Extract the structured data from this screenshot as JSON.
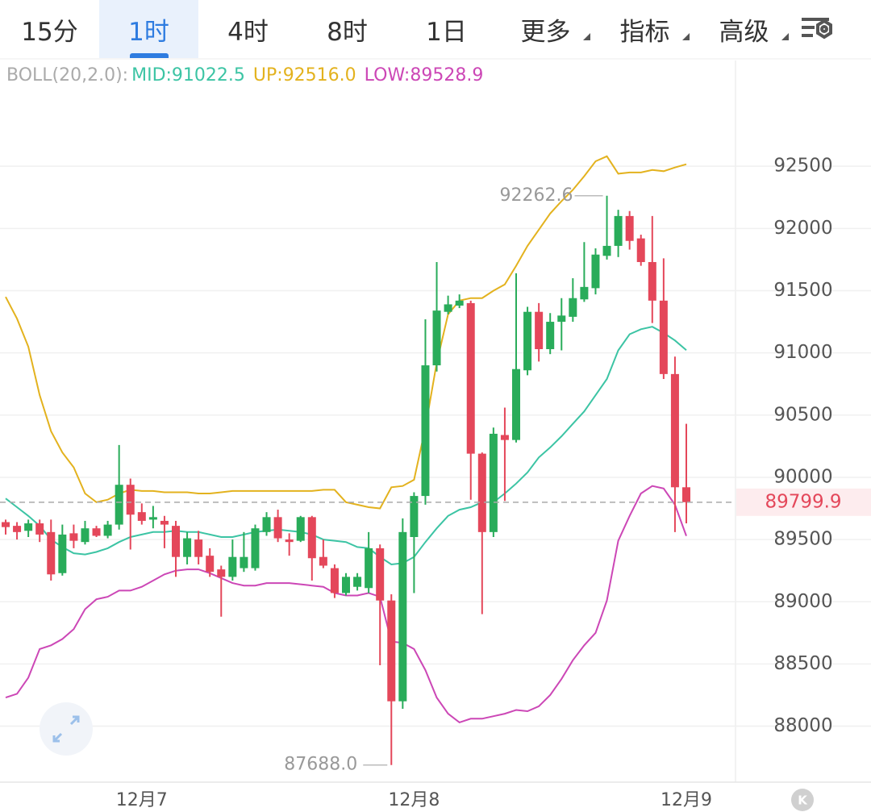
{
  "tabs": [
    "15分",
    "1时",
    "4时",
    "8时",
    "1日",
    "更多",
    "指标",
    "高级"
  ],
  "active_tab_index": 1,
  "menu_tabs": [
    5,
    6,
    7
  ],
  "logo": "K",
  "chart_data": {
    "type": "candlestick",
    "indicator": "BOLL(20,2.0):",
    "categories": [
      null,
      null,
      null,
      null,
      null,
      null,
      null,
      null,
      null,
      null,
      null,
      null,
      "12月7",
      null,
      null,
      null,
      null,
      null,
      null,
      null,
      null,
      null,
      null,
      null,
      null,
      null,
      null,
      null,
      null,
      null,
      null,
      null,
      null,
      null,
      null,
      null,
      "12月8",
      null,
      null,
      null,
      null,
      null,
      null,
      null,
      null,
      null,
      null,
      null,
      null,
      null,
      null,
      null,
      null,
      null,
      null,
      null,
      null,
      null,
      null,
      null,
      "12月9"
    ],
    "open": [
      89640,
      89610,
      89570,
      89630,
      89560,
      89230,
      89550,
      89480,
      89590,
      89530,
      89620,
      89940,
      89720,
      89660,
      89650,
      89610,
      89360,
      89500,
      89370,
      89260,
      89200,
      89270,
      89270,
      89560,
      89680,
      89500,
      89490,
      89680,
      89360,
      89270,
      89070,
      89120,
      89110,
      89430,
      89010,
      88200,
      89520,
      89850,
      90900,
      91330,
      91380,
      91400,
      90190,
      89560,
      90340,
      90300,
      90860,
      91330,
      91030,
      91250,
      91290,
      91430,
      91520,
      91780,
      91860,
      92100,
      91920,
      91730,
      91420,
      90830,
      89920
    ],
    "high": [
      89660,
      89640,
      89660,
      89660,
      89660,
      89620,
      89620,
      89650,
      89610,
      89650,
      90260,
      89990,
      89790,
      89770,
      89690,
      89650,
      89560,
      89570,
      89430,
      89290,
      89500,
      89560,
      89620,
      89720,
      89740,
      89550,
      89690,
      89690,
      89500,
      89300,
      89230,
      89230,
      89560,
      89460,
      89060,
      89670,
      89880,
      91270,
      91730,
      91460,
      91470,
      91420,
      90200,
      90400,
      90560,
      91640,
      91370,
      91400,
      91320,
      91440,
      91600,
      91890,
      91840,
      92262.6,
      92150,
      92140,
      91950,
      92100,
      91760,
      90970,
      90430
    ],
    "low": [
      89540,
      89500,
      89520,
      89480,
      89170,
      89210,
      89430,
      89460,
      89520,
      89510,
      89580,
      89420,
      89620,
      89590,
      89430,
      89200,
      89300,
      89300,
      89200,
      88880,
      89170,
      89240,
      89250,
      89530,
      89480,
      89370,
      89480,
      89170,
      89270,
      89030,
      89050,
      89090,
      89070,
      88490,
      87688,
      88140,
      89070,
      89780,
      90850,
      91310,
      91360,
      89820,
      88900,
      89520,
      89810,
      90280,
      90820,
      90930,
      90990,
      91020,
      91250,
      91410,
      91470,
      91750,
      91770,
      91830,
      91700,
      91240,
      90790,
      89560,
      89630
    ],
    "close": [
      89600,
      89560,
      89630,
      89540,
      89220,
      89540,
      89490,
      89590,
      89530,
      89620,
      89940,
      89700,
      89650,
      89680,
      89620,
      89360,
      89510,
      89360,
      89240,
      89200,
      89360,
      89360,
      89590,
      89680,
      89510,
      89480,
      89680,
      89350,
      89290,
      89070,
      89200,
      89200,
      89430,
      89010,
      88200,
      89560,
      89850,
      90900,
      91340,
      91390,
      91420,
      90190,
      89560,
      90350,
      90300,
      90870,
      91330,
      91030,
      91250,
      91300,
      91440,
      91530,
      91790,
      91860,
      92100,
      91900,
      91730,
      91420,
      90830,
      89920,
      89799.9
    ],
    "low_value_label": "87688.0",
    "up_color": "#29ac5a",
    "down_color": "#e4475a",
    "series": [
      {
        "name": "MID:",
        "color": "#3cc4a4",
        "last_label": "91022.5",
        "values": [
          89830,
          89760,
          89690,
          89610,
          89500,
          89440,
          89390,
          89380,
          89400,
          89430,
          89480,
          89520,
          89540,
          89560,
          89560,
          89570,
          89560,
          89560,
          89540,
          89520,
          89520,
          89540,
          89560,
          89570,
          89580,
          89570,
          89560,
          89540,
          89500,
          89490,
          89480,
          89440,
          89430,
          89360,
          89300,
          89310,
          89360,
          89480,
          89590,
          89690,
          89740,
          89760,
          89800,
          89800,
          89870,
          89950,
          90040,
          90160,
          90240,
          90330,
          90430,
          90530,
          90660,
          90790,
          91020,
          91150,
          91190,
          91210,
          91160,
          91100,
          91022.5
        ]
      },
      {
        "name": "UP:",
        "color": "#e3b21e",
        "last_label": "92516.0",
        "values": [
          91450,
          91275,
          91050,
          90660,
          90370,
          90200,
          90080,
          89870,
          89800,
          89820,
          89870,
          89900,
          89890,
          89890,
          89880,
          89880,
          89880,
          89870,
          89870,
          89880,
          89890,
          89890,
          89890,
          89890,
          89890,
          89890,
          89890,
          89890,
          89900,
          89900,
          89800,
          89780,
          89760,
          89750,
          89920,
          89930,
          89980,
          90400,
          90920,
          91310,
          91420,
          91440,
          91440,
          91500,
          91550,
          91700,
          91860,
          91990,
          92120,
          92220,
          92310,
          92420,
          92540,
          92580,
          92440,
          92450,
          92450,
          92470,
          92460,
          92490,
          92516
        ]
      },
      {
        "name": "LOW:",
        "color": "#cc47b6",
        "last_label": "89528.9",
        "values": [
          88230,
          88260,
          88390,
          88620,
          88650,
          88700,
          88780,
          88940,
          89020,
          89040,
          89090,
          89090,
          89120,
          89170,
          89220,
          89250,
          89260,
          89260,
          89230,
          89190,
          89150,
          89130,
          89130,
          89150,
          89150,
          89150,
          89140,
          89130,
          89120,
          89070,
          89050,
          89050,
          89070,
          89040,
          88680,
          88670,
          88620,
          88450,
          88230,
          88100,
          88030,
          88060,
          88060,
          88080,
          88100,
          88130,
          88120,
          88160,
          88250,
          88380,
          88530,
          88650,
          88750,
          89010,
          89490,
          89690,
          89870,
          89930,
          89910,
          89780,
          89528.9
        ]
      }
    ],
    "ylim": [
      87550,
      93350
    ],
    "yticks": [
      88000,
      88500,
      89000,
      89500,
      90000,
      90500,
      91000,
      91500,
      92000,
      92500
    ],
    "grid": true
  }
}
